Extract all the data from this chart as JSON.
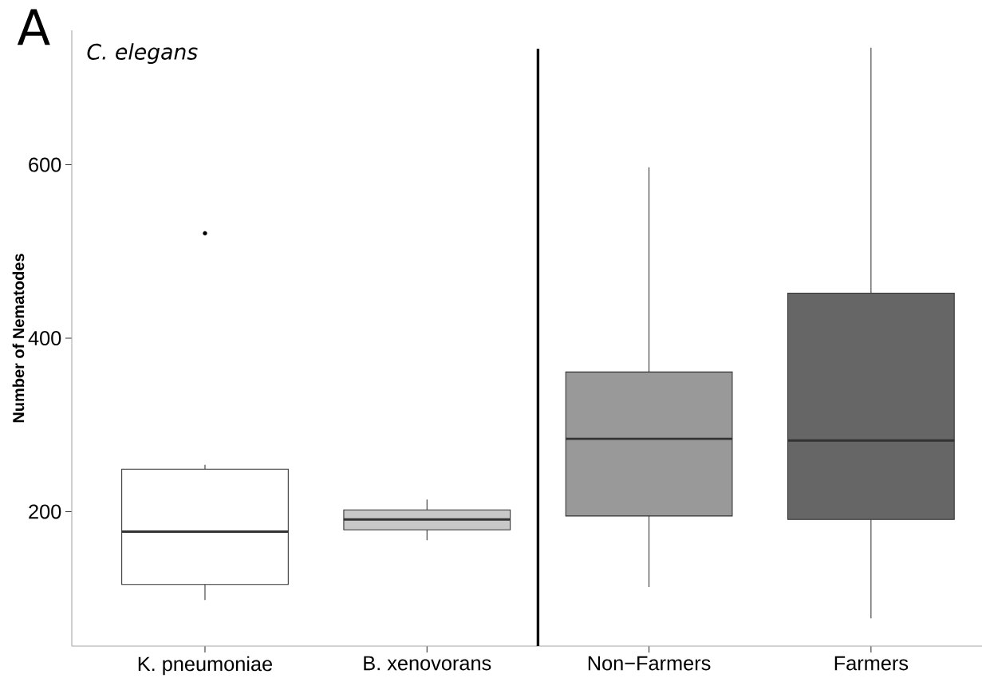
{
  "chart_data": {
    "type": "box",
    "title": "A",
    "ylabel": "Number of Nematodes",
    "annotations": [
      "C. elegans"
    ],
    "categories": [
      "K. pneumoniae",
      "B. xenovorans",
      "Non−Farmers",
      "Farmers"
    ],
    "boxes": [
      {
        "low": 98,
        "q1": 116,
        "median": 177,
        "q3": 249,
        "high": 254,
        "outliers": [
          521
        ]
      },
      {
        "low": 167,
        "q1": 179,
        "median": 191,
        "q3": 202,
        "high": 214
      },
      {
        "low": 113,
        "q1": 195,
        "median": 284,
        "q3": 361,
        "high": 597
      },
      {
        "low": 77,
        "q1": 191,
        "median": 282,
        "q3": 452,
        "high": 735
      }
    ],
    "colors": [
      "#ffffff",
      "#c8c8c8",
      "#999999",
      "#666666"
    ],
    "ylim": [
      45,
      755
    ],
    "yticks": [
      200,
      400,
      600
    ]
  }
}
